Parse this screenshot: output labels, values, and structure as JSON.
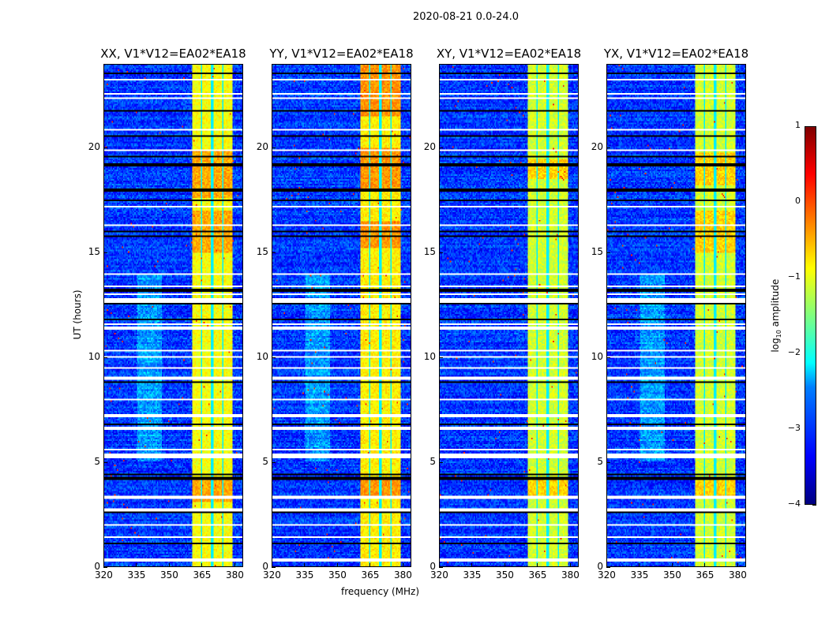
{
  "chart_data": {
    "type": "heatmap",
    "title": "2020-08-21 0.0-24.0",
    "xlabel": "frequency (MHz)",
    "ylabel": "UT (hours)",
    "xlim": [
      320,
      384
    ],
    "ylim": [
      0,
      24
    ],
    "xticks": [
      "320",
      "335",
      "350",
      "365",
      "380"
    ],
    "xtick_values": [
      320,
      335,
      350,
      365,
      380
    ],
    "yticks": [
      "0",
      "5",
      "10",
      "15",
      "20"
    ],
    "ytick_values": [
      0,
      5,
      10,
      15,
      20
    ],
    "colorbar": {
      "label_main": "log",
      "label_sub": "10",
      "label_rest": " amplitude",
      "range": [
        -4,
        1
      ],
      "ticks": [
        "1",
        "0",
        "−1",
        "−2",
        "−3",
        "−4"
      ],
      "tick_values": [
        1,
        0,
        -1,
        -2,
        -3,
        -4
      ],
      "colormap": "jet"
    },
    "background_level_log10": -3.1,
    "bright_band": {
      "start_mhz": 360.5,
      "end_mhz": 379.5,
      "level_log10": -1.0,
      "channel_gaps_mhz": [
        365,
        370,
        375
      ]
    },
    "flagged_rows_hours": [
      0.3,
      1.4,
      2.0,
      2.7,
      3.3,
      5.3,
      5.6,
      6.6,
      7.2,
      8.0,
      9.0,
      9.5,
      10.0,
      10.3,
      11.4,
      11.6,
      12.7,
      13.0,
      13.4,
      14.0,
      16.3,
      17.2,
      19.9,
      20.9,
      22.4,
      22.6,
      23.3
    ],
    "dark_rows_hours": [
      1.1,
      2.6,
      4.2,
      4.4,
      6.8,
      8.8,
      11.8,
      12.6,
      13.2,
      15.8,
      16.0,
      17.5,
      18.0,
      19.2,
      19.6,
      20.6,
      21.8,
      23.6
    ],
    "panels": [
      {
        "title": "XX, V1*V12=EA02*EA18",
        "band_level_log10": -0.9,
        "hot_hours": [
          [
            3.1,
            4.1
          ],
          [
            15.0,
            17.0
          ],
          [
            17.6,
            19.9
          ]
        ]
      },
      {
        "title": "YY, V1*V12=EA02*EA18",
        "band_level_log10": -0.8,
        "hot_hours": [
          [
            3.2,
            4.1
          ],
          [
            15.2,
            16.5
          ],
          [
            18.0,
            20.0
          ],
          [
            21.5,
            24.0
          ]
        ]
      },
      {
        "title": "XY, V1*V12=EA02*EA18",
        "band_level_log10": -1.1,
        "hot_hours": [
          [
            3.2,
            4.1
          ],
          [
            18.5,
            19.5
          ]
        ]
      },
      {
        "title": "YX, V1*V12=EA02*EA18",
        "band_level_log10": -1.1,
        "hot_hours": [
          [
            3.2,
            4.1
          ],
          [
            15.0,
            17.0
          ],
          [
            18.2,
            19.8
          ]
        ]
      }
    ]
  }
}
